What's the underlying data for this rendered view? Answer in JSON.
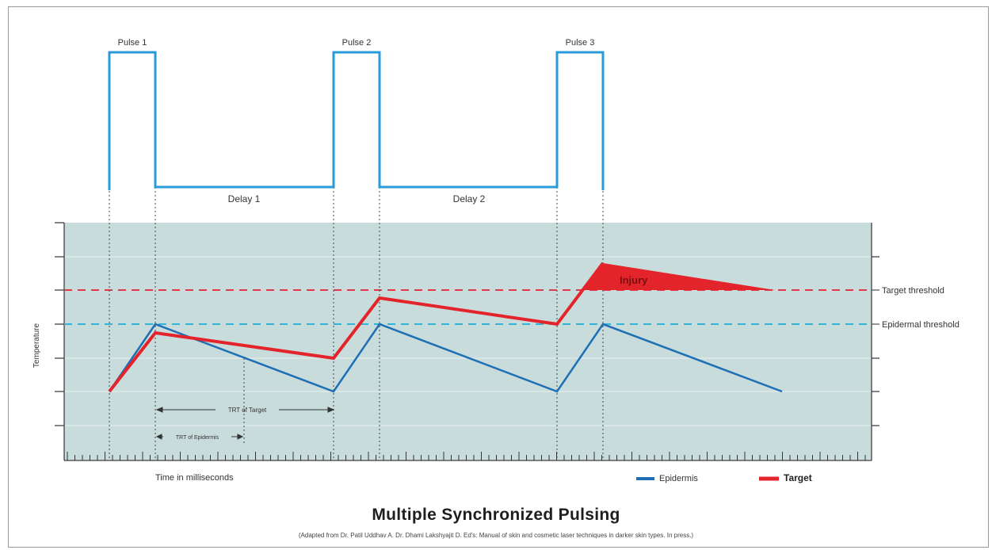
{
  "pulses": [
    {
      "label": "Pulse 1"
    },
    {
      "label": "Pulse 2"
    },
    {
      "label": "Pulse 3"
    }
  ],
  "delays": [
    "Delay 1",
    "Delay 2"
  ],
  "y_axis_label": "Temperature",
  "x_axis_label": "Time in milliseconds",
  "thresholds": {
    "target": {
      "label": "Target threshold",
      "color": "#e03a4a"
    },
    "epidermal": {
      "label": "Epidermal threshold",
      "color": "#2fb6d6"
    }
  },
  "annotations": {
    "injury": "Injury",
    "trt_target": "TRT of Target",
    "trt_epidermis": "TRT of Epidermis"
  },
  "legend": {
    "epidermis": {
      "label": "Epidermis",
      "color": "#1f6fb5"
    },
    "target": {
      "label": "Target",
      "color": "#e3242b"
    }
  },
  "title": "Multiple Synchronized Pulsing",
  "credit": "(Adapted from Dr. Patil Uddhav A. Dr. Dhami Lakshyajit D.  Ed's:  Manual of skin and cosmetic laser techniques in darker skin types.  In press.)",
  "colors": {
    "pulse": "#2a9bd8",
    "plot_bg": "#c9dcdc",
    "injury": "#e3242b"
  }
}
